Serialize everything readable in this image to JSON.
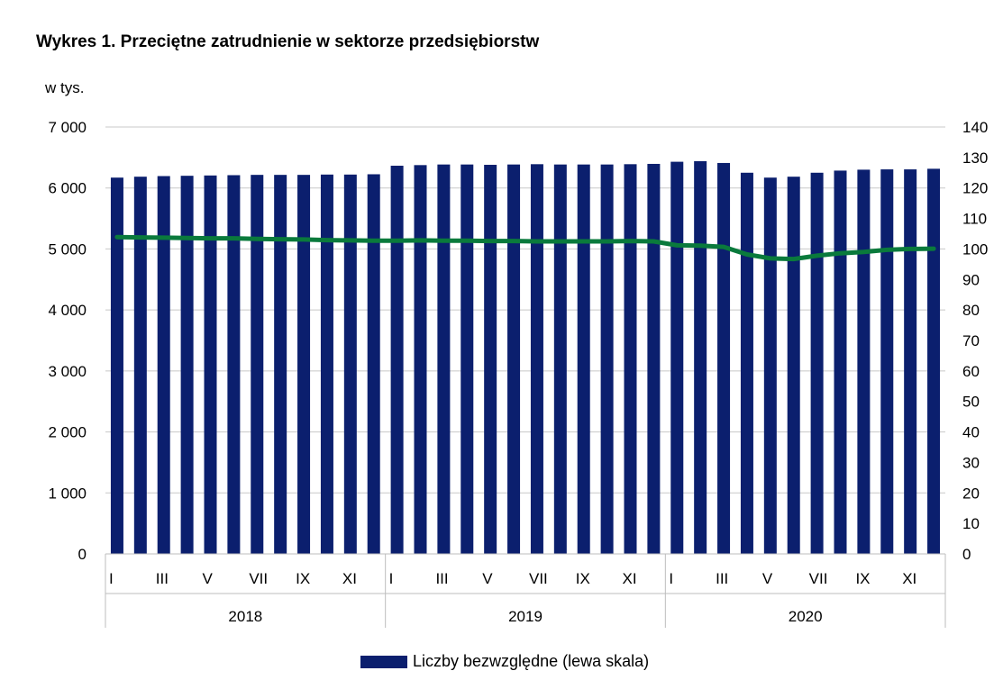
{
  "chart_data": {
    "type": "bar",
    "title": "Wykres 1. Przeciętne zatrudnienie w sektorze przedsiębiorstw",
    "ylabel": "w tys.",
    "ylim": [
      0,
      7000
    ],
    "y2lim": [
      0,
      140
    ],
    "yticks": [
      "0",
      "1 000",
      "2 000",
      "3 000",
      "4 000",
      "5 000",
      "6 000",
      "7 000"
    ],
    "y2ticks": [
      "0",
      "10",
      "20",
      "30",
      "40",
      "50",
      "60",
      "70",
      "80",
      "90",
      "100",
      "110",
      "120",
      "130",
      "140"
    ],
    "month_labels": [
      "I",
      "",
      "III",
      "",
      "V",
      "",
      "VII",
      "",
      "IX",
      "",
      "XI",
      ""
    ],
    "years": [
      "2018",
      "2019",
      "2020"
    ],
    "grid": true,
    "legend_position": "bottom",
    "series": [
      {
        "name": "Liczby bezwzględne (lewa skala)",
        "axis": "left",
        "type": "bar",
        "color": "#0b1f6e",
        "values": [
          6170,
          6185,
          6195,
          6200,
          6205,
          6210,
          6215,
          6215,
          6215,
          6220,
          6220,
          6225,
          6365,
          6375,
          6385,
          6385,
          6380,
          6385,
          6390,
          6385,
          6385,
          6385,
          6390,
          6395,
          6430,
          6440,
          6410,
          6250,
          6170,
          6185,
          6250,
          6285,
          6300,
          6305,
          6305,
          6315
        ]
      },
      {
        "axis": "right",
        "type": "line",
        "color": "#0a7a3c",
        "values": [
          103.9,
          103.8,
          103.7,
          103.6,
          103.5,
          103.5,
          103.3,
          103.2,
          103.1,
          102.9,
          102.8,
          102.7,
          102.7,
          102.8,
          102.7,
          102.7,
          102.6,
          102.6,
          102.5,
          102.5,
          102.5,
          102.5,
          102.6,
          102.5,
          101.2,
          101.1,
          100.7,
          98.2,
          96.9,
          96.7,
          97.8,
          98.6,
          99.0,
          99.7,
          100.0,
          100.1
        ]
      }
    ]
  }
}
